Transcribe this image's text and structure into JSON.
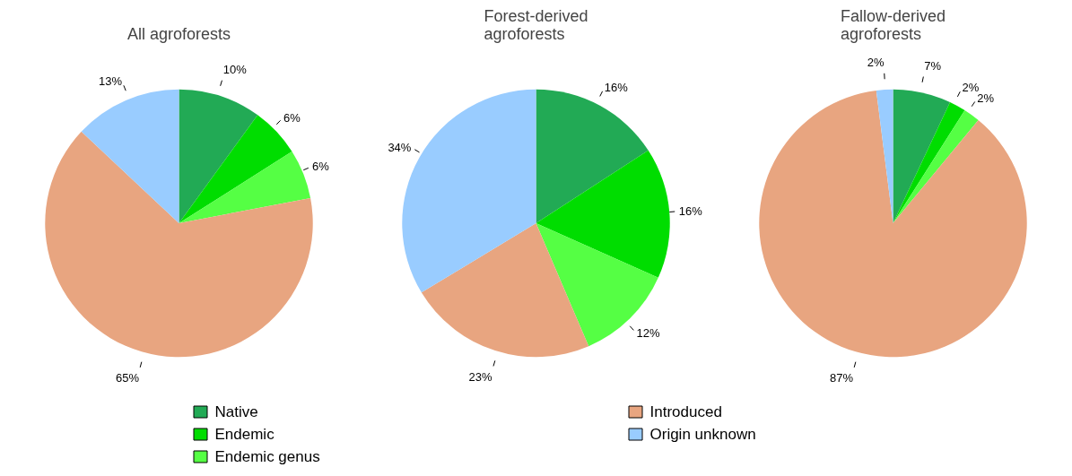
{
  "chart_data": [
    {
      "type": "pie",
      "title": "All agroforests",
      "categories": [
        "Native",
        "Endemic",
        "Endemic genus",
        "Introduced",
        "Origin unknown"
      ],
      "values": [
        10,
        6,
        6,
        65,
        13
      ],
      "value_labels": [
        "10%",
        "6%",
        "6%",
        "65%",
        "13%"
      ],
      "colors": [
        "#22aa55",
        "#00dd00",
        "#55ff44",
        "#e8a580",
        "#99ccff"
      ],
      "legend": "bottom"
    },
    {
      "type": "pie",
      "title": "Forest-derived\nagroforests",
      "values": [
        16,
        16,
        12,
        23,
        34
      ],
      "value_labels": [
        "16%",
        "16%",
        "12%",
        "23%",
        "34%"
      ],
      "colors": [
        "#22aa55",
        "#00dd00",
        "#55ff44",
        "#e8a580",
        "#99ccff"
      ]
    },
    {
      "type": "pie",
      "title": "Fallow-derived\nagroforests",
      "values": [
        7,
        2,
        2,
        87,
        2
      ],
      "value_labels": [
        "7%",
        "2%",
        "2%",
        "87%",
        "2%"
      ],
      "colors": [
        "#22aa55",
        "#00dd00",
        "#55ff44",
        "#e8a580",
        "#99ccff"
      ]
    }
  ]
}
